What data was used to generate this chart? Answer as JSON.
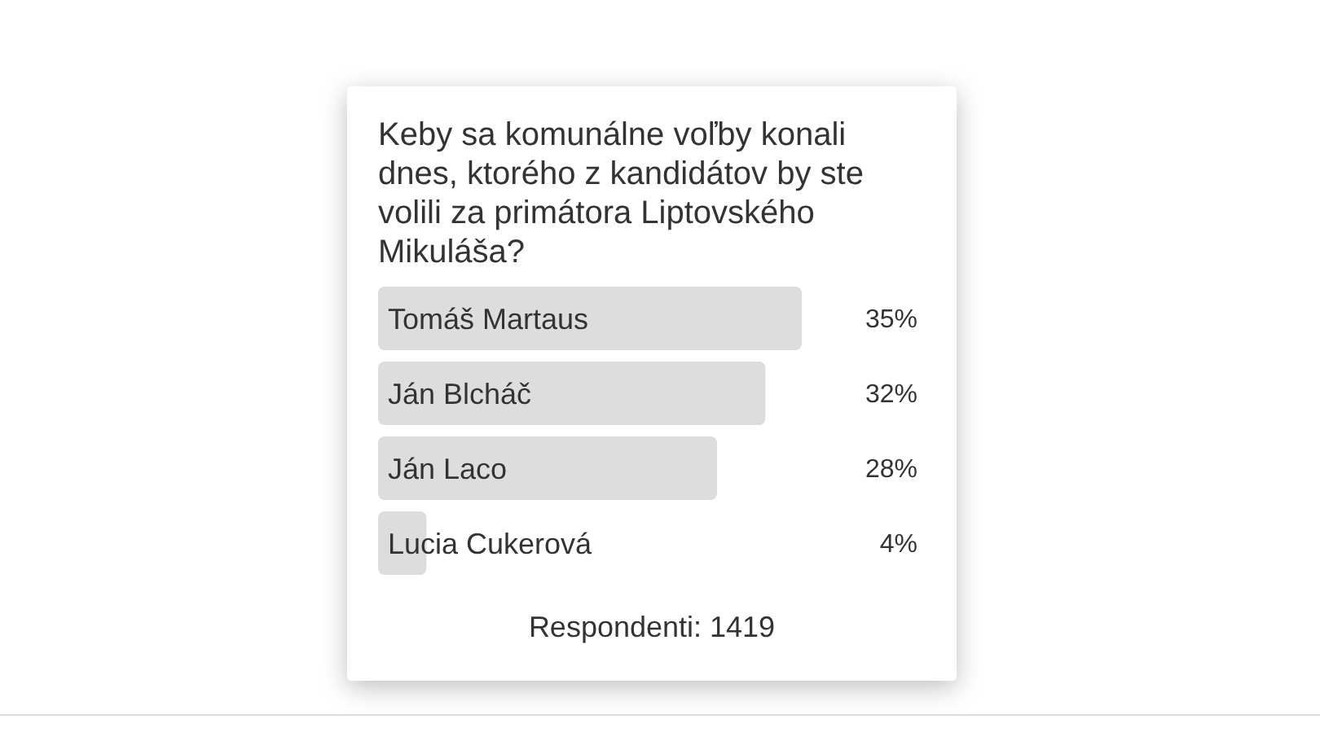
{
  "chart_data": {
    "type": "bar",
    "orientation": "horizontal",
    "title": "Keby sa komunálne voľby konali dnes, ktorého z kandidátov by ste volili za primátora Liptovského Mikuláša?",
    "categories": [
      "Tomáš Martaus",
      "Ján Blcháč",
      "Ján Laco",
      "Lucia Cukerová"
    ],
    "values": [
      35,
      32,
      28,
      4
    ],
    "value_labels": [
      "35%",
      "32%",
      "28%",
      "4%"
    ],
    "color": "#dddddd",
    "annotations": [
      "Respondenti: 1419"
    ]
  }
}
